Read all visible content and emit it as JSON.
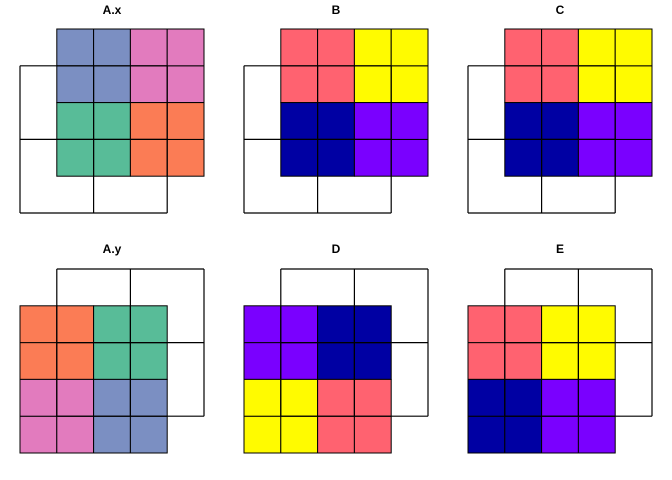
{
  "colors": {
    "blue_grey": "#7B8FC2",
    "pink": "#E27BBE",
    "green": "#58BC98",
    "orange": "#FB7C55",
    "red": "#FF6270",
    "yellow": "#FFFB00",
    "navy": "#0000A3",
    "violet": "#7A00FF"
  },
  "panels": [
    {
      "title": "A.x",
      "fills": [
        {
          "x": [
            1,
            3
          ],
          "y": [
            3,
            5
          ],
          "color": "blue_grey"
        },
        {
          "x": [
            3,
            5
          ],
          "y": [
            3,
            5
          ],
          "color": "pink"
        },
        {
          "x": [
            1,
            3
          ],
          "y": [
            1,
            3
          ],
          "color": "green"
        },
        {
          "x": [
            3,
            5
          ],
          "y": [
            1,
            3
          ],
          "color": "orange"
        }
      ],
      "outline": [
        [
          0,
          0
        ],
        [
          4,
          4
        ]
      ]
    },
    {
      "title": "B",
      "fills": [
        {
          "x": [
            1,
            3
          ],
          "y": [
            3,
            5
          ],
          "color": "red"
        },
        {
          "x": [
            3,
            5
          ],
          "y": [
            3,
            5
          ],
          "color": "yellow"
        },
        {
          "x": [
            1,
            3
          ],
          "y": [
            1,
            3
          ],
          "color": "navy"
        },
        {
          "x": [
            3,
            5
          ],
          "y": [
            1,
            3
          ],
          "color": "violet"
        }
      ],
      "outline": [
        [
          0,
          0
        ],
        [
          4,
          4
        ]
      ]
    },
    {
      "title": "C",
      "fills": [
        {
          "x": [
            1,
            3
          ],
          "y": [
            3,
            5
          ],
          "color": "red"
        },
        {
          "x": [
            3,
            5
          ],
          "y": [
            3,
            5
          ],
          "color": "yellow"
        },
        {
          "x": [
            1,
            3
          ],
          "y": [
            1,
            3
          ],
          "color": "navy"
        },
        {
          "x": [
            3,
            5
          ],
          "y": [
            1,
            3
          ],
          "color": "violet"
        }
      ],
      "outline": [
        [
          0,
          0
        ],
        [
          4,
          4
        ]
      ]
    },
    {
      "title": "A.y",
      "fills": [
        {
          "x": [
            0,
            2
          ],
          "y": [
            2,
            4
          ],
          "color": "orange"
        },
        {
          "x": [
            2,
            4
          ],
          "y": [
            2,
            4
          ],
          "color": "green"
        },
        {
          "x": [
            0,
            2
          ],
          "y": [
            0,
            2
          ],
          "color": "pink"
        },
        {
          "x": [
            2,
            4
          ],
          "y": [
            0,
            2
          ],
          "color": "blue_grey"
        }
      ],
      "outline": [
        [
          1,
          1
        ],
        [
          5,
          5
        ]
      ]
    },
    {
      "title": "D",
      "fills": [
        {
          "x": [
            0,
            2
          ],
          "y": [
            2,
            4
          ],
          "color": "violet"
        },
        {
          "x": [
            2,
            4
          ],
          "y": [
            2,
            4
          ],
          "color": "navy"
        },
        {
          "x": [
            0,
            2
          ],
          "y": [
            0,
            2
          ],
          "color": "yellow"
        },
        {
          "x": [
            2,
            4
          ],
          "y": [
            0,
            2
          ],
          "color": "red"
        }
      ],
      "outline": [
        [
          1,
          1
        ],
        [
          5,
          5
        ]
      ]
    },
    {
      "title": "E",
      "fills": [
        {
          "x": [
            0,
            2
          ],
          "y": [
            2,
            4
          ],
          "color": "red"
        },
        {
          "x": [
            2,
            4
          ],
          "y": [
            2,
            4
          ],
          "color": "yellow"
        },
        {
          "x": [
            0,
            2
          ],
          "y": [
            0,
            2
          ],
          "color": "navy"
        },
        {
          "x": [
            2,
            4
          ],
          "y": [
            0,
            2
          ],
          "color": "violet"
        }
      ],
      "outline": [
        [
          1,
          1
        ],
        [
          5,
          5
        ]
      ]
    }
  ]
}
